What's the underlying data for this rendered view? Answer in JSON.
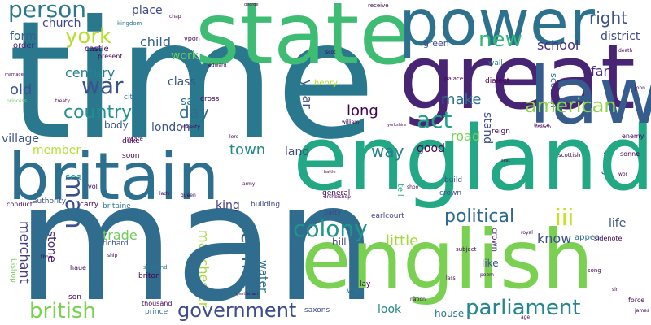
{
  "words": [
    "time",
    "man",
    "england",
    "great",
    "state",
    "power",
    "english",
    "britain",
    "law",
    "american",
    "colony",
    "parliament",
    "government",
    "british",
    "war",
    "york",
    "person",
    "political",
    "country",
    "act",
    "new",
    "iii",
    "right",
    "make",
    "little",
    "long",
    "century",
    "day",
    "way",
    "come",
    "town",
    "old",
    "london",
    "school",
    "far",
    "land",
    "year",
    "child",
    "district",
    "road",
    "village",
    "member",
    "work",
    "class",
    "place",
    "say",
    "church",
    "form",
    "good",
    "know",
    "stand",
    "life",
    "trade",
    "hill",
    "king",
    "like",
    "manchester",
    "merchant",
    "stone",
    "look",
    "body",
    "water",
    "green",
    "sea",
    "away",
    "house",
    "castle",
    "order",
    "henry",
    "earlcourt",
    "appear",
    "mile",
    "richard",
    "general",
    "party",
    "crown",
    "build",
    "edward",
    "kingdom",
    "vol",
    "duke",
    "prince",
    "building",
    "carry",
    "authority",
    "britaine",
    "soon",
    "city",
    "cross",
    "present",
    "vpon",
    "chap",
    "wall",
    "palace",
    "dialect",
    "street",
    "reign",
    "france",
    "scottish",
    "scotland",
    "briton",
    "thousand",
    "saxons",
    "vnto",
    "son",
    "lay",
    "lass",
    "song",
    "sir",
    "james",
    "force",
    "enemy",
    "sonne",
    "death",
    "john",
    "french",
    "conduct",
    "receive",
    "princess",
    "treaty",
    "army",
    "lady",
    "queen",
    "william",
    "lord",
    "majesty",
    "shire",
    "archbishop",
    "shoo",
    "haue",
    "thoo",
    "ship",
    "subject",
    "poem",
    "yeare",
    "sidenote",
    "scot",
    "royal",
    "nation",
    "bishop",
    "age",
    "george",
    "marriage",
    "tell",
    "wor",
    "yorkshire",
    "gentleman",
    "battle",
    "seat"
  ]
}
